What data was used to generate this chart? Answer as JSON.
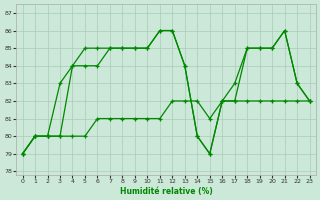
{
  "xlabel": "Humidité relative (%)",
  "xlim": [
    -0.5,
    23.5
  ],
  "ylim": [
    77.8,
    87.5
  ],
  "yticks": [
    78,
    79,
    80,
    81,
    82,
    83,
    84,
    85,
    86,
    87
  ],
  "xticks": [
    0,
    1,
    2,
    3,
    4,
    5,
    6,
    7,
    8,
    9,
    10,
    11,
    12,
    13,
    14,
    15,
    16,
    17,
    18,
    19,
    20,
    21,
    22,
    23
  ],
  "bg_color": "#cce8d8",
  "grid_color": "#aaccb8",
  "line_color": "#008800",
  "lineA_x": [
    0,
    1,
    2,
    3,
    4,
    5,
    6,
    7,
    8,
    9,
    10,
    11,
    12,
    13,
    14,
    15,
    16,
    17,
    18,
    19,
    20,
    21,
    22,
    23
  ],
  "lineA_y": [
    79,
    80,
    80,
    83,
    84,
    84,
    84,
    85,
    85,
    85,
    85,
    86,
    86,
    84,
    80,
    79,
    82,
    83,
    85,
    85,
    85,
    86,
    83,
    82
  ],
  "lineB_x": [
    0,
    1,
    2,
    3,
    4,
    5,
    6,
    7,
    8,
    9,
    10,
    11,
    12,
    13,
    14,
    15,
    16,
    17,
    18,
    19,
    20,
    21,
    22,
    23
  ],
  "lineB_y": [
    79,
    80,
    80,
    80,
    84,
    85,
    85,
    85,
    85,
    85,
    85,
    86,
    86,
    84,
    80,
    79,
    82,
    82,
    85,
    85,
    85,
    86,
    83,
    82
  ],
  "lineC_x": [
    0,
    1,
    2,
    3,
    4,
    5,
    6,
    7,
    8,
    9,
    10,
    11,
    12,
    13,
    14,
    15,
    16,
    17,
    18,
    19,
    20,
    21,
    22,
    23
  ],
  "lineC_y": [
    79,
    80,
    80,
    80,
    80,
    80,
    81,
    81,
    81,
    81,
    81,
    81,
    82,
    82,
    82,
    81,
    82,
    82,
    82,
    82,
    82,
    82,
    82,
    82
  ]
}
